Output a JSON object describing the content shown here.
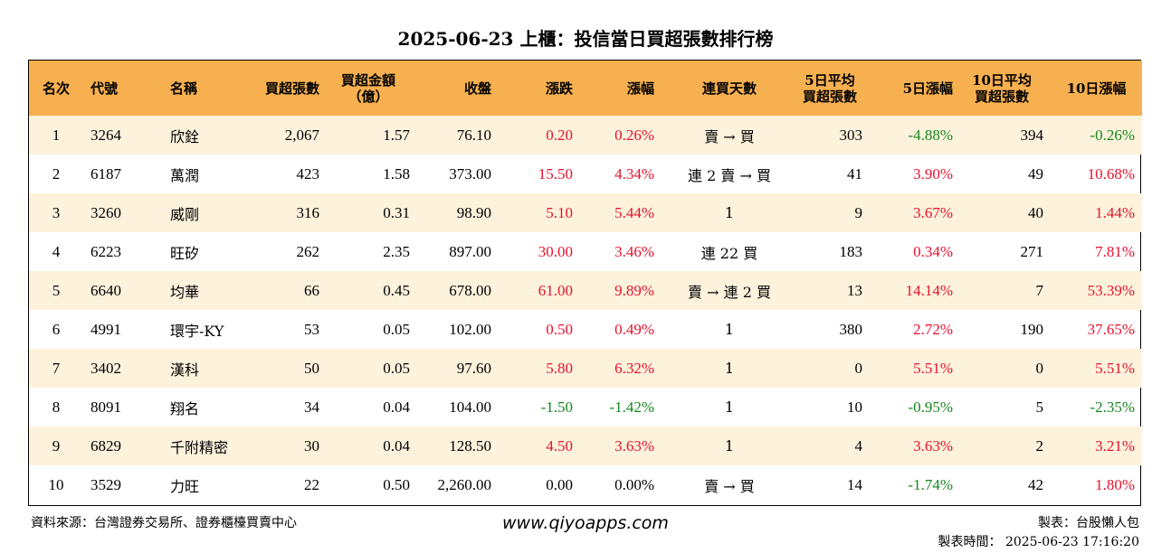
{
  "title": "2025-06-23 上櫃：投信當日買超張數排行榜",
  "columns": [
    {
      "label": "名次"
    },
    {
      "label": "代號"
    },
    {
      "label": "名稱"
    },
    {
      "label": "買超張數"
    },
    {
      "label": "買超金額",
      "label2": "（億）"
    },
    {
      "label": "收盤"
    },
    {
      "label": "漲跌"
    },
    {
      "label": "漲幅"
    },
    {
      "label": "連買天數"
    },
    {
      "label": "5日平均",
      "label2": "買超張數"
    },
    {
      "label": "5日漲幅"
    },
    {
      "label": "10日平均",
      "label2": "買超張數"
    },
    {
      "label": "10日漲幅"
    }
  ],
  "rows": [
    {
      "rank": "1",
      "code": "3264",
      "name": "欣銓",
      "net_buy": "2,067",
      "amount": "1.57",
      "close": "76.10",
      "change": "0.20",
      "change_color": "red",
      "pct": "0.26%",
      "pct_color": "red",
      "days": "賣 → 買",
      "avg5": "303",
      "chg5": "-4.88%",
      "chg5_color": "green",
      "avg10": "394",
      "chg10": "-0.26%",
      "chg10_color": "green"
    },
    {
      "rank": "2",
      "code": "6187",
      "name": "萬潤",
      "net_buy": "423",
      "amount": "1.58",
      "close": "373.00",
      "change": "15.50",
      "change_color": "red",
      "pct": "4.34%",
      "pct_color": "red",
      "days": "連 2 賣 → 買",
      "avg5": "41",
      "chg5": "3.90%",
      "chg5_color": "red",
      "avg10": "49",
      "chg10": "10.68%",
      "chg10_color": "red"
    },
    {
      "rank": "3",
      "code": "3260",
      "name": "威剛",
      "net_buy": "316",
      "amount": "0.31",
      "close": "98.90",
      "change": "5.10",
      "change_color": "red",
      "pct": "5.44%",
      "pct_color": "red",
      "days": "1",
      "avg5": "9",
      "chg5": "3.67%",
      "chg5_color": "red",
      "avg10": "40",
      "chg10": "1.44%",
      "chg10_color": "red"
    },
    {
      "rank": "4",
      "code": "6223",
      "name": "旺矽",
      "net_buy": "262",
      "amount": "2.35",
      "close": "897.00",
      "change": "30.00",
      "change_color": "red",
      "pct": "3.46%",
      "pct_color": "red",
      "days": "連 22 買",
      "avg5": "183",
      "chg5": "0.34%",
      "chg5_color": "red",
      "avg10": "271",
      "chg10": "7.81%",
      "chg10_color": "red"
    },
    {
      "rank": "5",
      "code": "6640",
      "name": "均華",
      "net_buy": "66",
      "amount": "0.45",
      "close": "678.00",
      "change": "61.00",
      "change_color": "red",
      "pct": "9.89%",
      "pct_color": "red",
      "days": "賣 → 連 2 買",
      "avg5": "13",
      "chg5": "14.14%",
      "chg5_color": "red",
      "avg10": "7",
      "chg10": "53.39%",
      "chg10_color": "red"
    },
    {
      "rank": "6",
      "code": "4991",
      "name": "環宇-KY",
      "net_buy": "53",
      "amount": "0.05",
      "close": "102.00",
      "change": "0.50",
      "change_color": "red",
      "pct": "0.49%",
      "pct_color": "red",
      "days": "1",
      "avg5": "380",
      "chg5": "2.72%",
      "chg5_color": "red",
      "avg10": "190",
      "chg10": "37.65%",
      "chg10_color": "red"
    },
    {
      "rank": "7",
      "code": "3402",
      "name": "漢科",
      "net_buy": "50",
      "amount": "0.05",
      "close": "97.60",
      "change": "5.80",
      "change_color": "red",
      "pct": "6.32%",
      "pct_color": "red",
      "days": "1",
      "avg5": "0",
      "chg5": "5.51%",
      "chg5_color": "red",
      "avg10": "0",
      "chg10": "5.51%",
      "chg10_color": "red"
    },
    {
      "rank": "8",
      "code": "8091",
      "name": "翔名",
      "net_buy": "34",
      "amount": "0.04",
      "close": "104.00",
      "change": "-1.50",
      "change_color": "green",
      "pct": "-1.42%",
      "pct_color": "green",
      "days": "1",
      "avg5": "10",
      "chg5": "-0.95%",
      "chg5_color": "green",
      "avg10": "5",
      "chg10": "-2.35%",
      "chg10_color": "green"
    },
    {
      "rank": "9",
      "code": "6829",
      "name": "千附精密",
      "net_buy": "30",
      "amount": "0.04",
      "close": "128.50",
      "change": "4.50",
      "change_color": "red",
      "pct": "3.63%",
      "pct_color": "red",
      "days": "1",
      "avg5": "4",
      "chg5": "3.63%",
      "chg5_color": "red",
      "avg10": "2",
      "chg10": "3.21%",
      "chg10_color": "red"
    },
    {
      "rank": "10",
      "code": "3529",
      "name": "力旺",
      "net_buy": "22",
      "amount": "0.50",
      "close": "2,260.00",
      "change": "0.00",
      "change_color": "black",
      "pct": "0.00%",
      "pct_color": "black",
      "days": "賣 → 買",
      "avg5": "14",
      "chg5": "-1.74%",
      "chg5_color": "green",
      "avg10": "42",
      "chg10": "1.80%",
      "chg10_color": "red"
    }
  ],
  "footer": {
    "source": "資料來源：台灣證券交易所、證券櫃檯買賣中心",
    "website": "www.qiyoapps.com",
    "maker": "製表：台股懶人包",
    "made_time": "製表時間： 2025-06-23 17:16:20"
  },
  "colors": {
    "header_bg": "#f7b04f",
    "alt_row_bg": "#fdf2dc",
    "up": "#e8112d",
    "down": "#15871d"
  }
}
